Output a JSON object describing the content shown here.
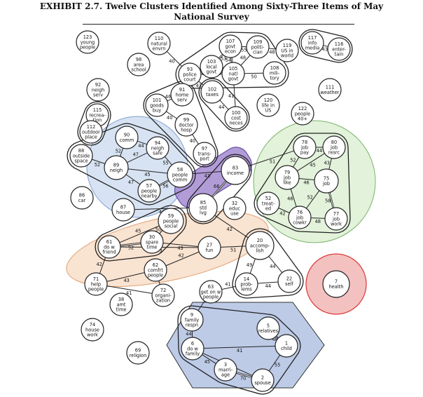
{
  "exhibit": {
    "title_line1": "EXHIBIT 2.7. Twelve Clusters Identified Among Sixty-Three Items of May",
    "title_line2": "National Survey"
  },
  "colors": {
    "blue_cluster": "#c9d9ef",
    "purple_cluster": "#a58bd1",
    "green_cluster": "#d9edcf",
    "orange_cluster": "#f7dcc6",
    "red_cluster": "#f1b2b2",
    "navy_cluster": "#b9c8e6"
  },
  "nodes": [
    {
      "id": "123",
      "lines": [
        "123",
        "young",
        "people"
      ]
    },
    {
      "id": "110",
      "lines": [
        "110",
        "natural",
        "envrn"
      ]
    },
    {
      "id": "98",
      "lines": [
        "98",
        "area",
        "school"
      ]
    },
    {
      "id": "93",
      "lines": [
        "93",
        "police",
        "court"
      ]
    },
    {
      "id": "103",
      "lines": [
        "103",
        "local",
        "govt"
      ]
    },
    {
      "id": "107",
      "lines": [
        "107",
        "govt",
        "econ"
      ]
    },
    {
      "id": "109",
      "lines": [
        "109",
        "politi-",
        "cian"
      ]
    },
    {
      "id": "105",
      "lines": [
        "105",
        "natl",
        "govt"
      ]
    },
    {
      "id": "108",
      "lines": [
        "108",
        "mili-",
        "tory"
      ]
    },
    {
      "id": "119",
      "lines": [
        "119",
        "US in",
        "world"
      ]
    },
    {
      "id": "117",
      "lines": [
        "117",
        "info",
        "media"
      ]
    },
    {
      "id": "116",
      "lines": [
        "116",
        "enter-",
        "tain"
      ]
    },
    {
      "id": "92",
      "lines": [
        "92",
        "neigh",
        "serv"
      ]
    },
    {
      "id": "91",
      "lines": [
        "91",
        "home",
        "serv"
      ]
    },
    {
      "id": "102",
      "lines": [
        "102",
        "taxes"
      ]
    },
    {
      "id": "111",
      "lines": [
        "111",
        "weather"
      ]
    },
    {
      "id": "101",
      "lines": [
        "101",
        "goods",
        "buy"
      ]
    },
    {
      "id": "120",
      "lines": [
        "120",
        "life in",
        "US"
      ]
    },
    {
      "id": "115",
      "lines": [
        "115",
        "recrea-",
        "tion"
      ]
    },
    {
      "id": "100",
      "lines": [
        "100",
        "cost",
        "neces"
      ]
    },
    {
      "id": "122",
      "lines": [
        "122",
        "people",
        "40+"
      ]
    },
    {
      "id": "99",
      "lines": [
        "99",
        "doctor",
        "hosp"
      ]
    },
    {
      "id": "112",
      "lines": [
        "112",
        "outdoor",
        "place"
      ]
    },
    {
      "id": "90",
      "lines": [
        "90",
        "comm"
      ]
    },
    {
      "id": "94",
      "lines": [
        "94",
        "neigh",
        "safe"
      ]
    },
    {
      "id": "97",
      "lines": [
        "97",
        "trans-",
        "port"
      ]
    },
    {
      "id": "88",
      "lines": [
        "88",
        "outside",
        "space"
      ]
    },
    {
      "id": "89",
      "lines": [
        "89",
        "neigh"
      ]
    },
    {
      "id": "58",
      "lines": [
        "58",
        "people",
        "comm"
      ]
    },
    {
      "id": "83",
      "lines": [
        "83",
        "income"
      ]
    },
    {
      "id": "78",
      "lines": [
        "78",
        "job",
        "pay"
      ]
    },
    {
      "id": "80",
      "lines": [
        "80",
        "job",
        "resrc"
      ]
    },
    {
      "id": "79",
      "lines": [
        "79",
        "job",
        "like"
      ]
    },
    {
      "id": "75",
      "lines": [
        "75",
        "job"
      ]
    },
    {
      "id": "57",
      "lines": [
        "57",
        "people",
        "nearby"
      ]
    },
    {
      "id": "52",
      "lines": [
        "52",
        "treat-",
        "ed"
      ]
    },
    {
      "id": "85",
      "lines": [
        "85",
        "std",
        "lvg"
      ]
    },
    {
      "id": "32",
      "lines": [
        "32",
        "educ",
        "use"
      ]
    },
    {
      "id": "86",
      "lines": [
        "86",
        "car"
      ]
    },
    {
      "id": "87",
      "lines": [
        "87",
        "house"
      ]
    },
    {
      "id": "59",
      "lines": [
        "59",
        "people",
        "social"
      ]
    },
    {
      "id": "76",
      "lines": [
        "76",
        "job",
        "cowkr"
      ]
    },
    {
      "id": "77",
      "lines": [
        "77",
        "job",
        "work"
      ]
    },
    {
      "id": "61",
      "lines": [
        "61",
        "do w",
        "friend"
      ]
    },
    {
      "id": "30",
      "lines": [
        "30",
        "spare",
        "time"
      ]
    },
    {
      "id": "27",
      "lines": [
        "27",
        "fun"
      ]
    },
    {
      "id": "20",
      "lines": [
        "20",
        "accomp-",
        "lish"
      ]
    },
    {
      "id": "62",
      "lines": [
        "62",
        "comfrt",
        "people"
      ]
    },
    {
      "id": "71",
      "lines": [
        "71",
        "help",
        "people"
      ]
    },
    {
      "id": "14",
      "lines": [
        "14",
        "prob-",
        "lems"
      ]
    },
    {
      "id": "22",
      "lines": [
        "22",
        "self"
      ]
    },
    {
      "id": "7",
      "lines": [
        "7",
        "health"
      ]
    },
    {
      "id": "72",
      "lines": [
        "72",
        "organi-",
        "zation"
      ]
    },
    {
      "id": "38",
      "lines": [
        "38",
        "amt",
        "time"
      ]
    },
    {
      "id": "63",
      "lines": [
        "63",
        "get on w",
        "people"
      ]
    },
    {
      "id": "9",
      "lines": [
        "9",
        "family",
        "respn"
      ]
    },
    {
      "id": "74",
      "lines": [
        "74",
        "house",
        "work"
      ]
    },
    {
      "id": "5",
      "lines": [
        "5",
        "relatives"
      ]
    },
    {
      "id": "1",
      "lines": [
        "1",
        "child"
      ]
    },
    {
      "id": "6",
      "lines": [
        "6",
        "do w",
        "family"
      ]
    },
    {
      "id": "69",
      "lines": [
        "69",
        "religion"
      ]
    },
    {
      "id": "3",
      "lines": [
        "3",
        "marri-",
        "age"
      ]
    },
    {
      "id": "2",
      "lines": [
        "2",
        "spouse"
      ]
    }
  ],
  "edges": [
    {
      "a": "110",
      "b": "93",
      "label": "40"
    },
    {
      "a": "93",
      "b": "103",
      "label": "40"
    },
    {
      "a": "103",
      "b": "107",
      "label": "53"
    },
    {
      "a": "107",
      "b": "109",
      "label": "55"
    },
    {
      "a": "109",
      "b": "119",
      "label": "48"
    },
    {
      "a": "107",
      "b": "105",
      "label": "54"
    },
    {
      "a": "109",
      "b": "105",
      "label": "48"
    },
    {
      "a": "105",
      "b": "108",
      "label": "50"
    },
    {
      "a": "103",
      "b": "105",
      "label": "59"
    },
    {
      "a": "93",
      "b": "105",
      "label": "43"
    },
    {
      "a": "93",
      "b": "102",
      "label": "43"
    },
    {
      "a": "102",
      "b": "100",
      "label": "44"
    },
    {
      "a": "105",
      "b": "100",
      "label": "41"
    },
    {
      "a": "117",
      "b": "116",
      "label": "43"
    },
    {
      "a": "91",
      "b": "101",
      "label": "46"
    },
    {
      "a": "91",
      "b": "93",
      "label": "40"
    },
    {
      "a": "101",
      "b": "99",
      "label": "40"
    },
    {
      "a": "99",
      "b": "97",
      "label": "40"
    },
    {
      "a": "115",
      "b": "112",
      "label": "48"
    },
    {
      "a": "90",
      "b": "94",
      "label": "44"
    },
    {
      "a": "90",
      "b": "89",
      "label": "52"
    },
    {
      "a": "94",
      "b": "89",
      "label": "47"
    },
    {
      "a": "94",
      "b": "58",
      "label": "55"
    },
    {
      "a": "88",
      "b": "89",
      "label": "52"
    },
    {
      "a": "89",
      "b": "58",
      "label": "45"
    },
    {
      "a": "89",
      "b": "57",
      "label": "47"
    },
    {
      "a": "57",
      "b": "58",
      "label": "56"
    },
    {
      "a": "58",
      "b": "83",
      "label": "43"
    },
    {
      "a": "87",
      "b": "85",
      "label": "44"
    },
    {
      "a": "83",
      "b": "85",
      "label": "66"
    },
    {
      "a": "83",
      "b": "78",
      "label": "51"
    },
    {
      "a": "78",
      "b": "80",
      "label": "44"
    },
    {
      "a": "78",
      "b": "79",
      "label": "52"
    },
    {
      "a": "79",
      "b": "80",
      "label": "45"
    },
    {
      "a": "80",
      "b": "75",
      "label": "43"
    },
    {
      "a": "79",
      "b": "75",
      "label": "46"
    },
    {
      "a": "79",
      "b": "76",
      "label": "46"
    },
    {
      "a": "75",
      "b": "76",
      "label": "52"
    },
    {
      "a": "75",
      "b": "77",
      "label": "58"
    },
    {
      "a": "76",
      "b": "77",
      "label": "48"
    },
    {
      "a": "52",
      "b": "76",
      "label": "42"
    },
    {
      "a": "85",
      "b": "20",
      "label": "42"
    },
    {
      "a": "59",
      "b": "61",
      "label": "45"
    },
    {
      "a": "59",
      "b": "30",
      "label": "50"
    },
    {
      "a": "61",
      "b": "30",
      "label": "52"
    },
    {
      "a": "30",
      "b": "27",
      "label": "43"
    },
    {
      "a": "61",
      "b": "27",
      "label": "43"
    },
    {
      "a": "61",
      "b": "71",
      "label": "42"
    },
    {
      "a": "27",
      "b": "62",
      "label": "42"
    },
    {
      "a": "27",
      "b": "20",
      "label": "51"
    },
    {
      "a": "20",
      "b": "14",
      "label": "49"
    },
    {
      "a": "20",
      "b": "22",
      "label": "44"
    },
    {
      "a": "14",
      "b": "22",
      "label": "44"
    },
    {
      "a": "71",
      "b": "62",
      "label": "43"
    },
    {
      "a": "71",
      "b": "72",
      "label": "41"
    },
    {
      "a": "62",
      "b": "72",
      "label": ""
    },
    {
      "a": "14",
      "b": "63",
      "label": "41"
    },
    {
      "a": "63",
      "b": "9",
      "label": ""
    },
    {
      "a": "9",
      "b": "6",
      "label": "44"
    },
    {
      "a": "6",
      "b": "3",
      "label": "45"
    },
    {
      "a": "6",
      "b": "2",
      "label": "45"
    },
    {
      "a": "3",
      "b": "2",
      "label": "70"
    },
    {
      "a": "2",
      "b": "1",
      "label": "55"
    },
    {
      "a": "5",
      "b": "1",
      "label": "48"
    },
    {
      "a": "6",
      "b": "1",
      "label": "41"
    }
  ]
}
